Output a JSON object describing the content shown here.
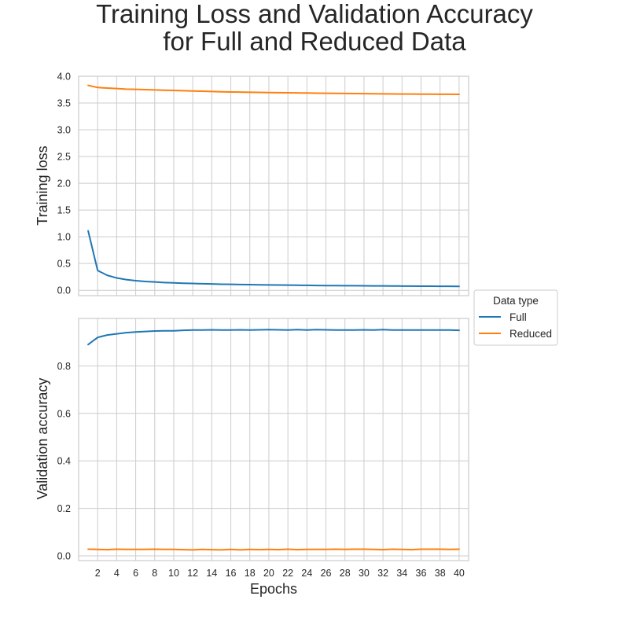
{
  "chart_data": [
    {
      "type": "line",
      "panel": "top",
      "title": "Training Loss and Validation Accuracy for Full and Reduced Data",
      "title_lines": [
        "Training Loss and Validation Accuracy",
        "for Full and Reduced Data"
      ],
      "xlabel": "",
      "ylabel": "Training loss",
      "ylim": [
        -0.1,
        4.0
      ],
      "yticks": [
        0.0,
        0.5,
        1.0,
        1.5,
        2.0,
        2.5,
        3.0,
        3.5,
        4.0
      ],
      "ytick_labels": [
        "0.0",
        "0.5",
        "1.0",
        "1.5",
        "2.0",
        "2.5",
        "3.0",
        "3.5",
        "4.0"
      ],
      "xlim": [
        0,
        41
      ],
      "grid": true,
      "series": [
        {
          "name": "Full",
          "color": "#1f77b4",
          "x": [
            1,
            2,
            3,
            4,
            5,
            6,
            7,
            8,
            9,
            10,
            11,
            12,
            13,
            14,
            15,
            16,
            17,
            18,
            19,
            20,
            21,
            22,
            23,
            24,
            25,
            26,
            27,
            28,
            29,
            30,
            31,
            32,
            33,
            34,
            35,
            36,
            37,
            38,
            39,
            40
          ],
          "values": [
            1.11,
            0.37,
            0.28,
            0.23,
            0.2,
            0.18,
            0.165,
            0.155,
            0.145,
            0.138,
            0.132,
            0.127,
            0.122,
            0.118,
            0.114,
            0.111,
            0.108,
            0.105,
            0.102,
            0.1,
            0.098,
            0.096,
            0.094,
            0.092,
            0.09,
            0.088,
            0.087,
            0.086,
            0.085,
            0.083,
            0.082,
            0.081,
            0.08,
            0.079,
            0.078,
            0.077,
            0.076,
            0.075,
            0.074,
            0.073
          ]
        },
        {
          "name": "Reduced",
          "color": "#ff7f0e",
          "x": [
            1,
            2,
            3,
            4,
            5,
            6,
            7,
            8,
            9,
            10,
            11,
            12,
            13,
            14,
            15,
            16,
            17,
            18,
            19,
            20,
            21,
            22,
            23,
            24,
            25,
            26,
            27,
            28,
            29,
            30,
            31,
            32,
            33,
            34,
            35,
            36,
            37,
            38,
            39,
            40
          ],
          "values": [
            3.83,
            3.79,
            3.78,
            3.77,
            3.76,
            3.755,
            3.75,
            3.745,
            3.74,
            3.735,
            3.73,
            3.725,
            3.72,
            3.715,
            3.71,
            3.707,
            3.704,
            3.701,
            3.698,
            3.695,
            3.693,
            3.691,
            3.689,
            3.687,
            3.685,
            3.683,
            3.681,
            3.679,
            3.677,
            3.675,
            3.673,
            3.671,
            3.669,
            3.668,
            3.667,
            3.666,
            3.665,
            3.664,
            3.663,
            3.662
          ]
        }
      ]
    },
    {
      "type": "line",
      "panel": "bottom",
      "xlabel": "Epochs",
      "ylabel": "Validation accuracy",
      "ylim": [
        -0.02,
        1.0
      ],
      "yticks": [
        0.0,
        0.2,
        0.4,
        0.6,
        0.8
      ],
      "ytick_labels": [
        "0.0",
        "0.2",
        "0.4",
        "0.6",
        "0.8"
      ],
      "xlim": [
        0,
        41
      ],
      "xticks": [
        2,
        4,
        6,
        8,
        10,
        12,
        14,
        16,
        18,
        20,
        22,
        24,
        26,
        28,
        30,
        32,
        34,
        36,
        38,
        40
      ],
      "xtick_labels": [
        "2",
        "4",
        "6",
        "8",
        "10",
        "12",
        "14",
        "16",
        "18",
        "20",
        "22",
        "24",
        "26",
        "28",
        "30",
        "32",
        "34",
        "36",
        "38",
        "40"
      ],
      "grid": true,
      "series": [
        {
          "name": "Full",
          "color": "#1f77b4",
          "x": [
            1,
            2,
            3,
            4,
            5,
            6,
            7,
            8,
            9,
            10,
            11,
            12,
            13,
            14,
            15,
            16,
            17,
            18,
            19,
            20,
            21,
            22,
            23,
            24,
            25,
            26,
            27,
            28,
            29,
            30,
            31,
            32,
            33,
            34,
            35,
            36,
            37,
            38,
            39,
            40
          ],
          "values": [
            0.89,
            0.92,
            0.93,
            0.935,
            0.94,
            0.943,
            0.945,
            0.947,
            0.948,
            0.948,
            0.95,
            0.951,
            0.951,
            0.952,
            0.951,
            0.951,
            0.952,
            0.951,
            0.952,
            0.953,
            0.952,
            0.951,
            0.953,
            0.951,
            0.953,
            0.952,
            0.951,
            0.951,
            0.951,
            0.952,
            0.951,
            0.953,
            0.951,
            0.951,
            0.951,
            0.951,
            0.951,
            0.951,
            0.951,
            0.95
          ]
        },
        {
          "name": "Reduced",
          "color": "#ff7f0e",
          "x": [
            1,
            2,
            3,
            4,
            5,
            6,
            7,
            8,
            9,
            10,
            11,
            12,
            13,
            14,
            15,
            16,
            17,
            18,
            19,
            20,
            21,
            22,
            23,
            24,
            25,
            26,
            27,
            28,
            29,
            30,
            31,
            32,
            33,
            34,
            35,
            36,
            37,
            38,
            39,
            40
          ],
          "values": [
            0.028,
            0.027,
            0.026,
            0.028,
            0.027,
            0.027,
            0.027,
            0.028,
            0.027,
            0.027,
            0.026,
            0.025,
            0.027,
            0.026,
            0.025,
            0.027,
            0.025,
            0.027,
            0.026,
            0.027,
            0.026,
            0.028,
            0.026,
            0.027,
            0.027,
            0.027,
            0.028,
            0.027,
            0.028,
            0.028,
            0.027,
            0.026,
            0.028,
            0.027,
            0.026,
            0.028,
            0.028,
            0.028,
            0.027,
            0.028
          ]
        }
      ]
    }
  ],
  "legend": {
    "title": "Data type",
    "position": "right",
    "entries": [
      {
        "label": "Full",
        "color": "#1f77b4"
      },
      {
        "label": "Reduced",
        "color": "#ff7f0e"
      }
    ]
  },
  "style": {
    "grid_color": "#cccccc",
    "spine_color": "#cccccc",
    "text_color": "#262626"
  }
}
